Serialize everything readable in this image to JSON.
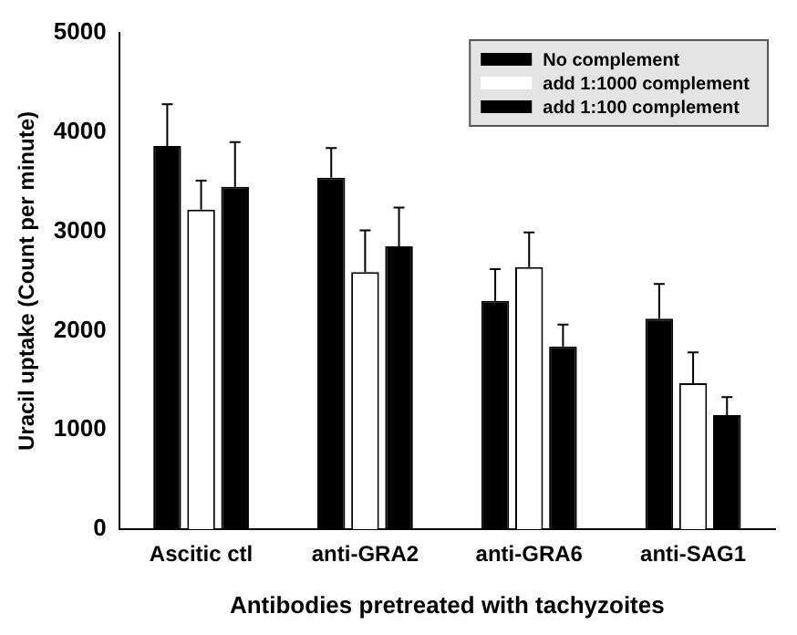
{
  "chart_data": {
    "type": "bar",
    "xlabel": "Antibodies pretreated with tachyzoites",
    "ylabel": "Uracil uptake (Count per minute)",
    "categories": [
      "Ascitic ctl",
      "anti-GRA2",
      "anti-GRA6",
      "anti-SAG1"
    ],
    "series": [
      {
        "name": "No complement",
        "color": "#000000",
        "values": [
          3860,
          3540,
          2300,
          2120
        ],
        "errors": [
          [
            3860,
            4280
          ],
          [
            3540,
            3840
          ],
          [
            2300,
            2620
          ],
          [
            2120,
            2470
          ]
        ]
      },
      {
        "name": "add 1:1000 complement",
        "color": "#ffffff",
        "values": [
          3220,
          2590,
          2640,
          1470
        ],
        "errors": [
          [
            3220,
            3510
          ],
          [
            2590,
            3010
          ],
          [
            2640,
            2990
          ],
          [
            1470,
            1780
          ]
        ]
      },
      {
        "name": "add 1:100 complement",
        "color": "#000000",
        "values": [
          3450,
          2850,
          1840,
          1150
        ],
        "errors": [
          [
            3450,
            3900
          ],
          [
            2850,
            3240
          ],
          [
            1840,
            2060
          ],
          [
            1150,
            1330
          ]
        ]
      }
    ],
    "ylim": [
      0,
      5000
    ],
    "yticks": [
      0,
      1000,
      2000,
      3000,
      4000,
      5000
    ],
    "grid": false,
    "legend": "top right"
  }
}
